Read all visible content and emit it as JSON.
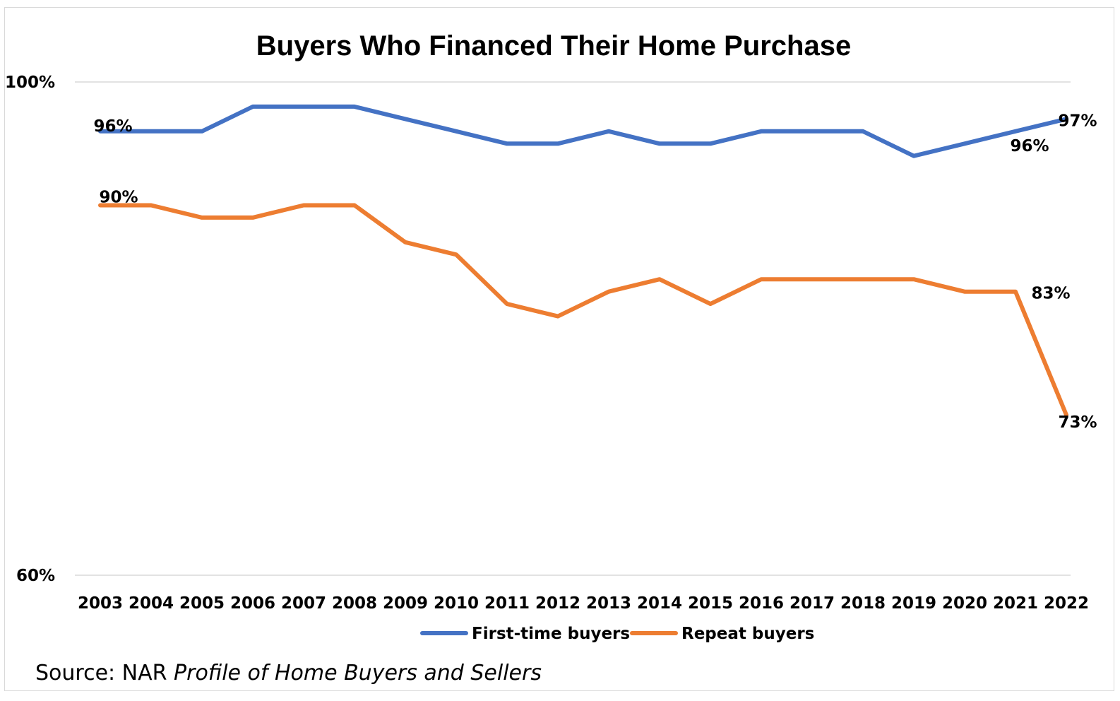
{
  "chart_data": {
    "type": "line",
    "title": "Buyers Who Financed Their Home Purchase",
    "ylim": [
      60,
      100
    ],
    "yticks": [
      "100%",
      "60%"
    ],
    "grid": true,
    "legend_position": "bottom",
    "categories": [
      "2003",
      "2004",
      "2005",
      "2006",
      "2007",
      "2008",
      "2009",
      "2010",
      "2011",
      "2012",
      "2013",
      "2014",
      "2015",
      "2016",
      "2017",
      "2018",
      "2019",
      "2020",
      "2021",
      "2022"
    ],
    "series": [
      {
        "name": "First-time buyers",
        "color": "#4472C4",
        "values": [
          96,
          96,
          96,
          98,
          98,
          98,
          97,
          96,
          95,
          95,
          96,
          95,
          95,
          96,
          96,
          96,
          94,
          95,
          96,
          97
        ]
      },
      {
        "name": "Repeat buyers",
        "color": "#ED7D31",
        "values": [
          90,
          90,
          89,
          89,
          90,
          90,
          87,
          86,
          82,
          81,
          83,
          84,
          82,
          84,
          84,
          84,
          84,
          83,
          83,
          73
        ]
      }
    ],
    "data_labels": [
      {
        "series": 0,
        "index": 0,
        "text": "96%"
      },
      {
        "series": 0,
        "index": 18,
        "text": "96%"
      },
      {
        "series": 0,
        "index": 19,
        "text": "97%"
      },
      {
        "series": 1,
        "index": 0,
        "text": "90%"
      },
      {
        "series": 1,
        "index": 18,
        "text": "83%"
      },
      {
        "series": 1,
        "index": 19,
        "text": "73%"
      }
    ]
  },
  "source": {
    "prefix": "Source: NAR ",
    "italic": "Profile of Home Buyers and Sellers"
  }
}
